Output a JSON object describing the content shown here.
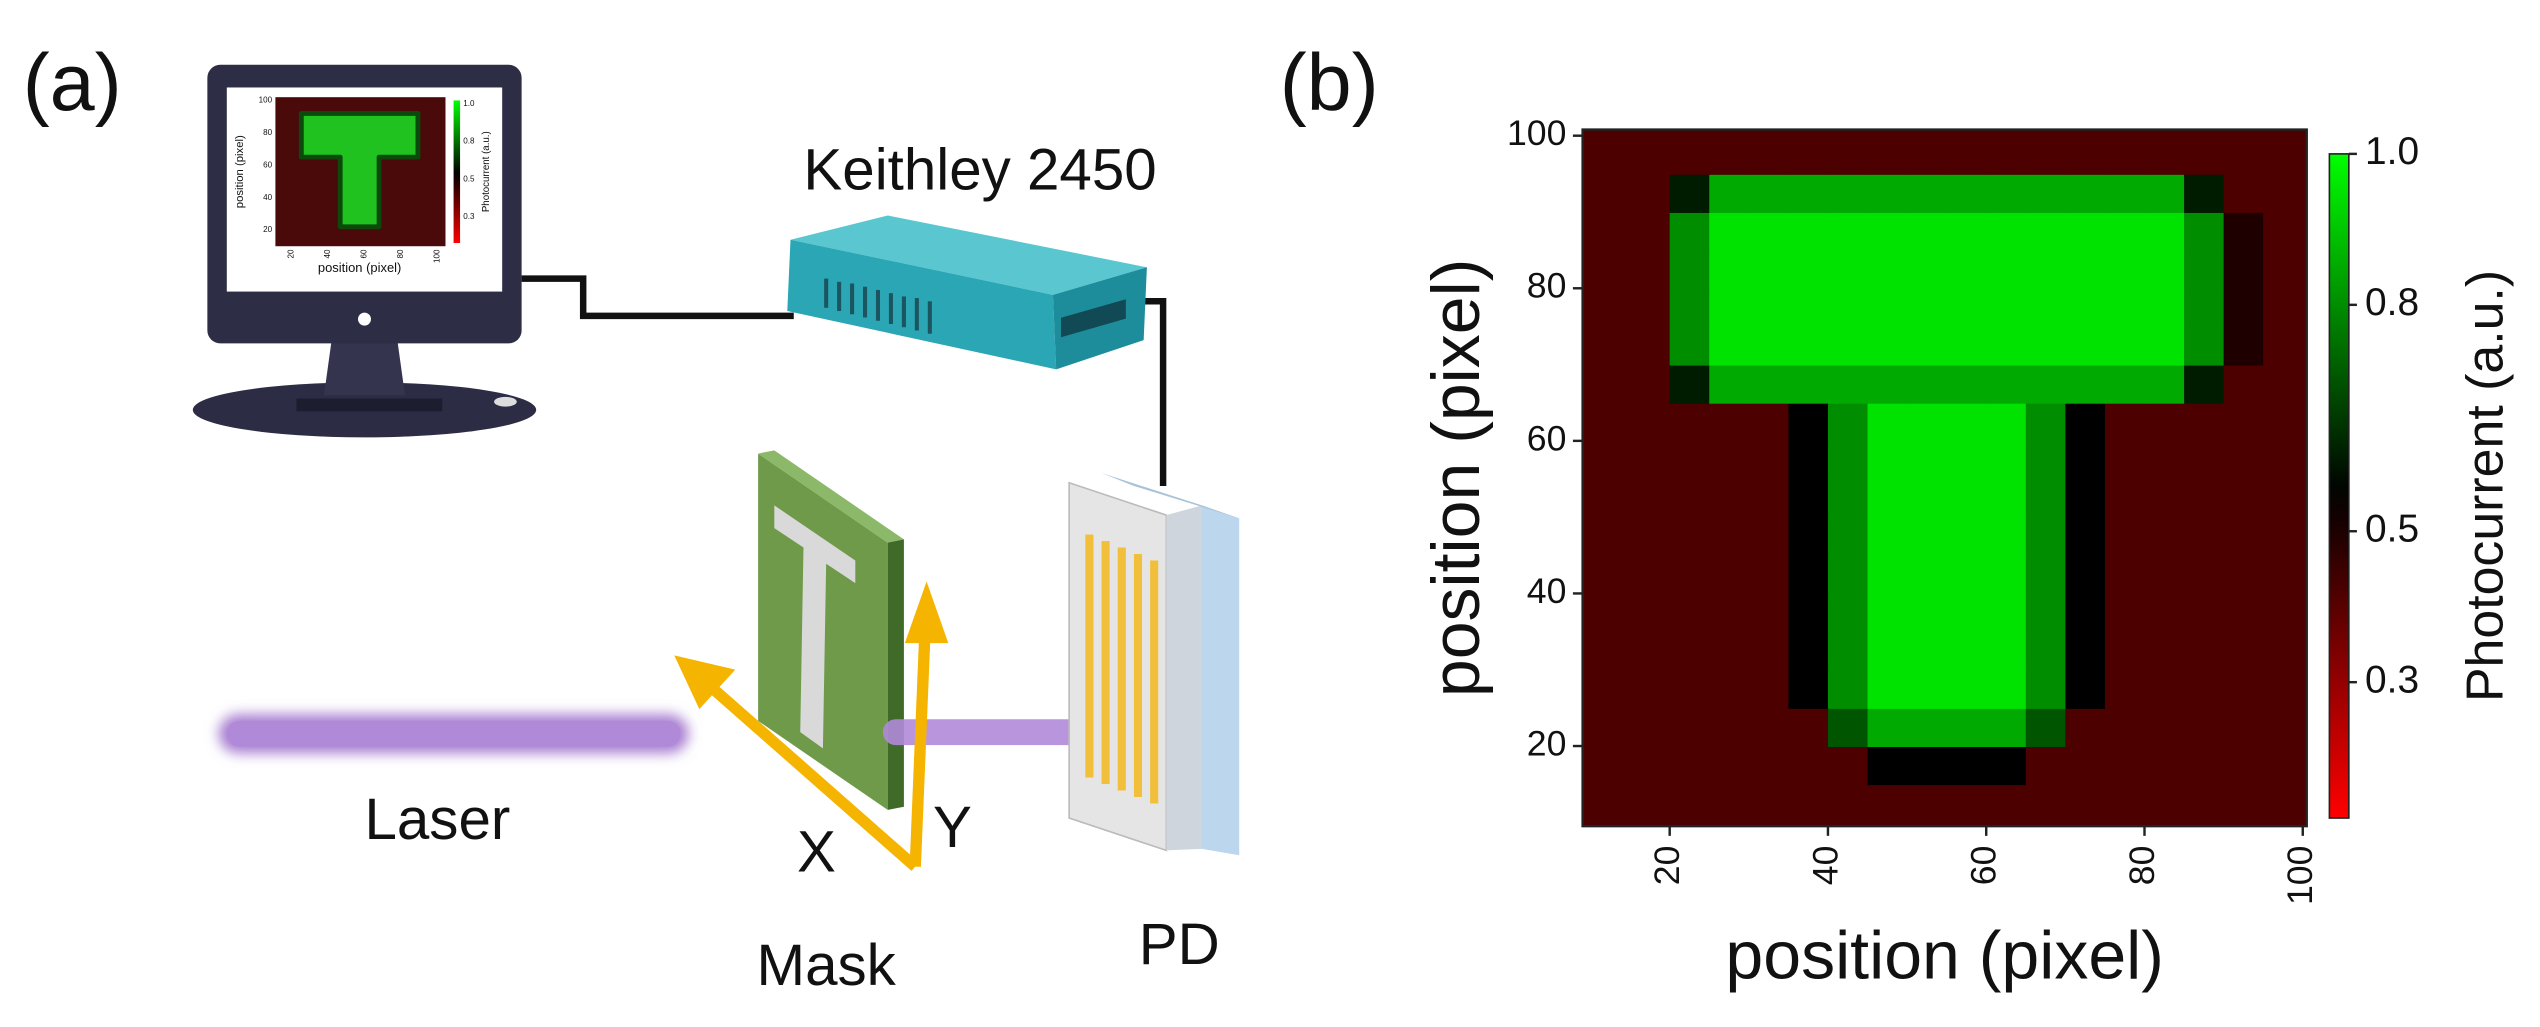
{
  "panel_a": {
    "label": "(a)",
    "instrument": "Keithley 2450",
    "laser": "Laser",
    "mask": "Mask",
    "pd": "PD",
    "x_arrow": "X",
    "y_arrow": "Y",
    "monitor": {
      "x_label": "position (pixel)",
      "y_label": "position (pixel)",
      "colorbar_label": "Photocurrent (a.u.)",
      "xticks": [
        "20",
        "40",
        "60",
        "80",
        "100"
      ],
      "yticks": [
        "20",
        "40",
        "60",
        "80",
        "100"
      ],
      "cticks": [
        "0.3",
        "0.5",
        "0.8",
        "1.0"
      ]
    }
  },
  "chart_data": {
    "type": "heatmap",
    "panel_label": "(b)",
    "x_label": "position (pixel)",
    "y_label": "position (pixel)",
    "colorbar_label": "Photocurrent (a.u.)",
    "x_edges": [
      10,
      15,
      20,
      25,
      30,
      35,
      40,
      45,
      50,
      55,
      60,
      65,
      70,
      75,
      80,
      85,
      90,
      95,
      100
    ],
    "y_edges": [
      10,
      15,
      20,
      25,
      30,
      35,
      40,
      45,
      50,
      55,
      60,
      65,
      70,
      75,
      80,
      85,
      90,
      95,
      100
    ],
    "z": [
      [
        0.42,
        0.42,
        0.42,
        0.42,
        0.42,
        0.42,
        0.42,
        0.42,
        0.42,
        0.42,
        0.42,
        0.42,
        0.42,
        0.42,
        0.42,
        0.42,
        0.42,
        0.42
      ],
      [
        0.42,
        0.42,
        0.42,
        0.42,
        0.42,
        0.42,
        0.42,
        0.55,
        0.55,
        0.55,
        0.55,
        0.42,
        0.42,
        0.42,
        0.42,
        0.42,
        0.42,
        0.42
      ],
      [
        0.42,
        0.42,
        0.42,
        0.42,
        0.42,
        0.42,
        0.7,
        0.85,
        0.85,
        0.85,
        0.85,
        0.7,
        0.42,
        0.42,
        0.42,
        0.42,
        0.42,
        0.42
      ],
      [
        0.42,
        0.42,
        0.42,
        0.42,
        0.42,
        0.55,
        0.8,
        0.95,
        0.95,
        0.95,
        0.95,
        0.8,
        0.55,
        0.42,
        0.42,
        0.42,
        0.42,
        0.42
      ],
      [
        0.42,
        0.42,
        0.42,
        0.42,
        0.42,
        0.55,
        0.8,
        0.95,
        0.95,
        0.95,
        0.95,
        0.8,
        0.55,
        0.42,
        0.42,
        0.42,
        0.42,
        0.42
      ],
      [
        0.42,
        0.42,
        0.42,
        0.42,
        0.42,
        0.55,
        0.8,
        0.95,
        0.95,
        0.95,
        0.95,
        0.8,
        0.55,
        0.42,
        0.42,
        0.42,
        0.42,
        0.42
      ],
      [
        0.42,
        0.42,
        0.42,
        0.42,
        0.42,
        0.55,
        0.8,
        0.95,
        0.95,
        0.95,
        0.95,
        0.8,
        0.55,
        0.42,
        0.42,
        0.42,
        0.42,
        0.42
      ],
      [
        0.42,
        0.42,
        0.42,
        0.42,
        0.42,
        0.55,
        0.8,
        0.95,
        0.95,
        0.95,
        0.95,
        0.8,
        0.55,
        0.42,
        0.42,
        0.42,
        0.42,
        0.42
      ],
      [
        0.42,
        0.42,
        0.42,
        0.42,
        0.42,
        0.55,
        0.8,
        0.95,
        0.95,
        0.95,
        0.95,
        0.8,
        0.55,
        0.42,
        0.42,
        0.42,
        0.42,
        0.42
      ],
      [
        0.42,
        0.42,
        0.42,
        0.42,
        0.42,
        0.55,
        0.8,
        0.95,
        0.95,
        0.95,
        0.95,
        0.8,
        0.55,
        0.42,
        0.42,
        0.42,
        0.42,
        0.42
      ],
      [
        0.42,
        0.42,
        0.42,
        0.42,
        0.42,
        0.55,
        0.8,
        0.95,
        0.95,
        0.95,
        0.95,
        0.8,
        0.55,
        0.42,
        0.42,
        0.42,
        0.42,
        0.42
      ],
      [
        0.42,
        0.42,
        0.6,
        0.85,
        0.85,
        0.85,
        0.85,
        0.85,
        0.85,
        0.85,
        0.85,
        0.85,
        0.85,
        0.85,
        0.85,
        0.6,
        0.42,
        0.42
      ],
      [
        0.42,
        0.42,
        0.8,
        0.95,
        0.95,
        0.95,
        0.95,
        0.95,
        0.95,
        0.95,
        0.95,
        0.95,
        0.95,
        0.95,
        0.95,
        0.8,
        0.5,
        0.42
      ],
      [
        0.42,
        0.42,
        0.8,
        0.95,
        0.95,
        0.95,
        0.95,
        0.95,
        0.95,
        0.95,
        0.95,
        0.95,
        0.95,
        0.95,
        0.95,
        0.8,
        0.5,
        0.42
      ],
      [
        0.42,
        0.42,
        0.8,
        0.95,
        0.95,
        0.95,
        0.95,
        0.95,
        0.95,
        0.95,
        0.95,
        0.95,
        0.95,
        0.95,
        0.95,
        0.8,
        0.5,
        0.42
      ],
      [
        0.42,
        0.42,
        0.8,
        0.95,
        0.95,
        0.95,
        0.95,
        0.95,
        0.95,
        0.95,
        0.95,
        0.95,
        0.95,
        0.95,
        0.95,
        0.8,
        0.5,
        0.42
      ],
      [
        0.42,
        0.42,
        0.6,
        0.85,
        0.85,
        0.85,
        0.85,
        0.85,
        0.85,
        0.85,
        0.85,
        0.85,
        0.85,
        0.85,
        0.85,
        0.6,
        0.42,
        0.42
      ],
      [
        0.42,
        0.42,
        0.42,
        0.42,
        0.42,
        0.42,
        0.42,
        0.42,
        0.42,
        0.42,
        0.42,
        0.42,
        0.42,
        0.42,
        0.42,
        0.42,
        0.42,
        0.42
      ]
    ],
    "xlim": [
      9,
      100.5
    ],
    "ylim": [
      9.5,
      100.8
    ],
    "xticks": [
      20,
      40,
      60,
      80,
      100
    ],
    "yticks": [
      20,
      40,
      60,
      80,
      100
    ],
    "clim": [
      0.12,
      1.0
    ],
    "cticks": [
      0.3,
      0.5,
      0.8,
      {
        "value": 1,
        "label": "1.0"
      }
    ],
    "colors": {
      "low": "#ff0000",
      "mid": "#000000",
      "high": "#00ff00"
    },
    "cmid": 0.55
  }
}
